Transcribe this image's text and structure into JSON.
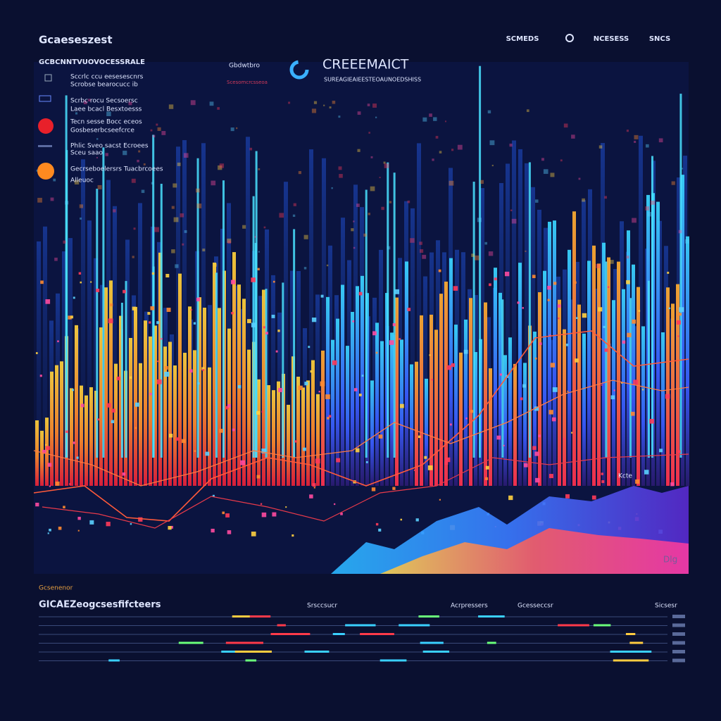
{
  "header": {
    "brand": "Gcaeseszest",
    "nav": [
      "SCMEDS",
      "NCESESS",
      "SNCS"
    ]
  },
  "sidebar": {
    "title": "GCBCNNTVUOVOCESSRALE",
    "items": [
      {
        "lines": [
          "Sccrlc ccu eesesescnrs",
          "Scrobse bearocucc ib"
        ]
      },
      {
        "lines": [
          "Scrbc rocu Secsoersc",
          "Laee bcacl Besxtoesss"
        ]
      },
      {
        "lines": [
          "Tecn sesse Bocc eceos",
          "Gosbeserbcseefcrce"
        ]
      },
      {
        "lines": [
          "Phlic Sveo sacst Ecroees",
          "Sceu saao"
        ]
      },
      {
        "lines": [
          "Gecrseboelersrs Tuacbrcoees",
          "Alleuoc"
        ]
      }
    ]
  },
  "banner": {
    "tag": "Gbdwtbro",
    "tag_sub": "Scesomcrcsseoa",
    "title": "CREEEMAICT",
    "subtitle": "SUREAGIEAIEESTEOAUNOEDSHISS"
  },
  "chart": {
    "labels": [
      "Kcte",
      "Dlg"
    ]
  },
  "table": {
    "section": "Gcsenenor",
    "title": "GICAEZeogcsesfifcteers",
    "columns": [
      "Srsccsucr",
      "Acrpressers",
      "Gcesseccsr",
      "Sicsesr"
    ]
  }
}
